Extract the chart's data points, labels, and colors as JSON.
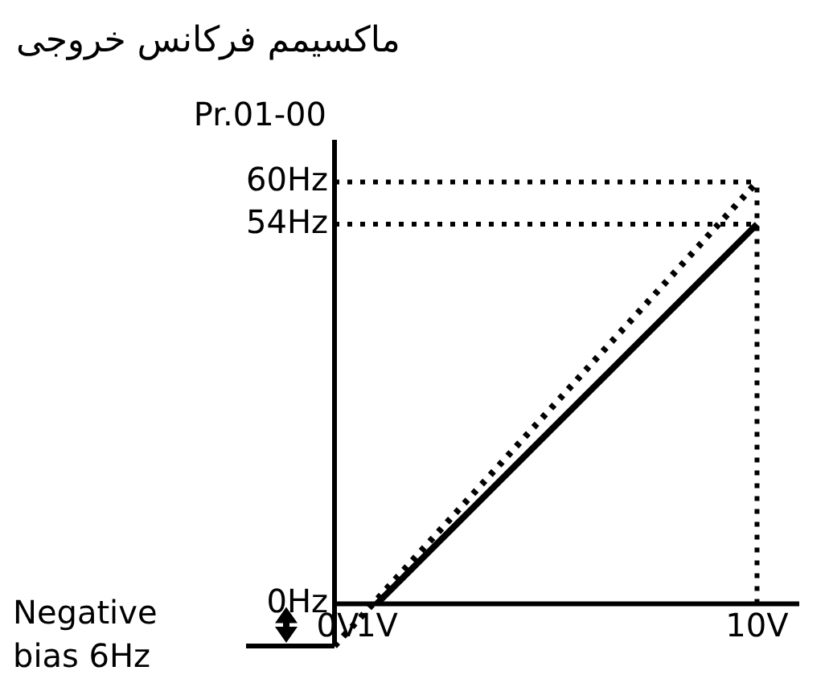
{
  "chart_data": {
    "type": "line",
    "title": "ماکسیمم فرکانس خروجی",
    "ylabel": "Pr.01-00",
    "xlim": [
      0,
      11
    ],
    "ylim": [
      -6,
      66
    ],
    "xticks": [
      {
        "value": 0,
        "label": "0V"
      },
      {
        "value": 1,
        "label": "1V"
      },
      {
        "value": 10,
        "label": "10V"
      }
    ],
    "yticks": [
      {
        "value": 0,
        "label": "0Hz"
      },
      {
        "value": 54,
        "label": "54Hz"
      },
      {
        "value": 60,
        "label": "60Hz"
      }
    ],
    "series": [
      {
        "x": [
          1,
          10
        ],
        "values": [
          0,
          54
        ],
        "color": "#000000",
        "line_style": "solid"
      },
      {
        "x": [
          0,
          10
        ],
        "values": [
          -6,
          60
        ],
        "color": "#000000",
        "line_style": "dotted"
      }
    ],
    "ref_lines": [
      {
        "axis": "y",
        "value": 60,
        "line_style": "dotted",
        "color": "#000000"
      },
      {
        "axis": "y",
        "value": 54,
        "line_style": "dotted",
        "color": "#000000"
      },
      {
        "axis": "x",
        "value": 10,
        "line_style": "dotted",
        "color": "#000000"
      }
    ],
    "annotations": [
      "Negative bias 6Hz"
    ]
  }
}
